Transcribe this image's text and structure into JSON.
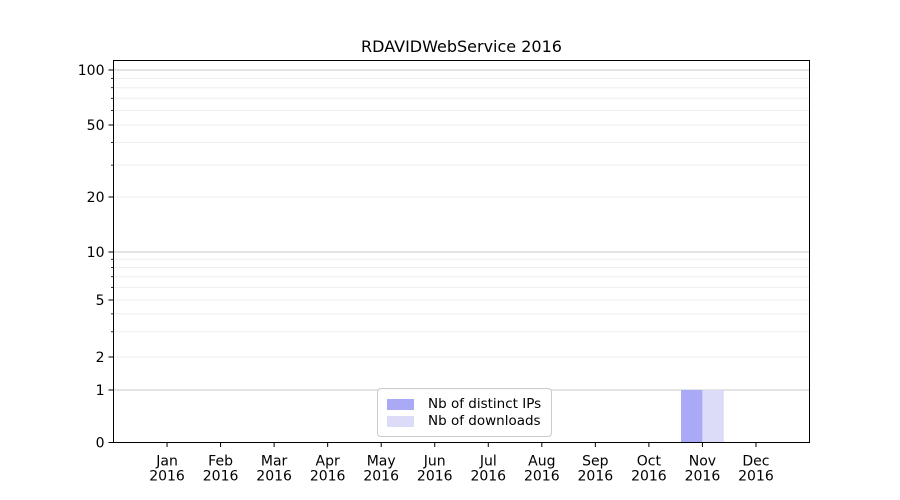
{
  "title": "RDAVIDWebService 2016",
  "chart_data": {
    "type": "bar",
    "title": "RDAVIDWebService 2016",
    "categories": [
      "Jan 2016",
      "Feb 2016",
      "Mar 2016",
      "Apr 2016",
      "May 2016",
      "Jun 2016",
      "Jul 2016",
      "Aug 2016",
      "Sep 2016",
      "Oct 2016",
      "Nov 2016",
      "Dec 2016"
    ],
    "series": [
      {
        "name": "Nb of distinct IPs",
        "color": "#a9a9f5",
        "values": [
          0,
          0,
          0,
          0,
          0,
          0,
          0,
          0,
          0,
          0,
          1,
          0
        ]
      },
      {
        "name": "Nb of downloads",
        "color": "#dcdcf8",
        "values": [
          0,
          0,
          0,
          0,
          0,
          0,
          0,
          0,
          0,
          0,
          1,
          0
        ]
      }
    ],
    "y_axis": {
      "scale": "log-like (compressed near zero, log10 above 1)",
      "ticks": [
        0,
        1,
        2,
        5,
        10,
        20,
        50,
        100
      ],
      "major_gridlines": [
        1,
        10,
        100
      ],
      "minor_gridlines": [
        3,
        4,
        6,
        7,
        8,
        9,
        30,
        40,
        60,
        70,
        80,
        90
      ],
      "range": [
        0,
        110
      ]
    },
    "xlabel": "",
    "ylabel": "",
    "grid": true,
    "legend_position": "lower center (inside plot)"
  },
  "colors": {
    "bar_distinct_ips": "#a9a9f5",
    "bar_downloads": "#dcdcf8",
    "major_grid": "#c9c9c9",
    "minor_grid": "#eeeeee",
    "axis": "#000000",
    "background": "#ffffff"
  }
}
